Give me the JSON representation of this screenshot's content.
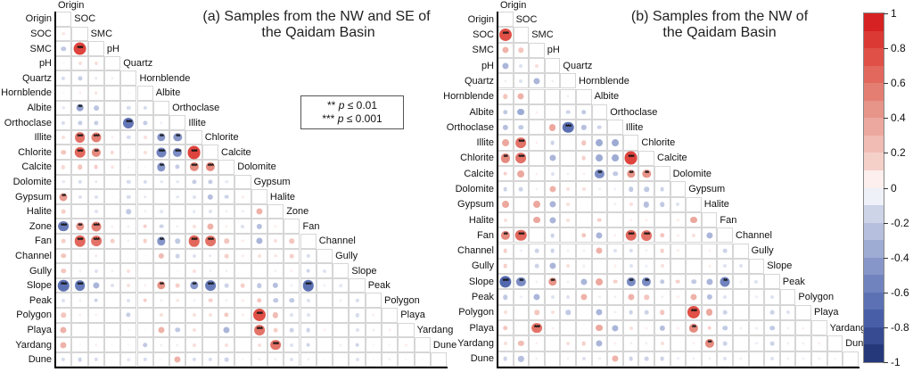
{
  "titles": {
    "a1": "(a) Samples from the NW and SE of",
    "a2": "the Qaidam Basin",
    "b1": "(b) Samples from the NW of",
    "b2": "the Qaidam Basin"
  },
  "sig_legend": {
    "line1_stars": "**",
    "line2_stars": "***",
    "p": "p",
    "line1_text": "≤ 0.01",
    "line2_text": "≤ 0.001"
  },
  "colorbar": {
    "ticks": [
      "1",
      "0.8",
      "0.6",
      "0.4",
      "0.2",
      "0",
      "-0.2",
      "-0.4",
      "-0.6",
      "-0.8",
      "-1"
    ],
    "positive_color": "#d41619",
    "negative_color": "#1b2e6e"
  },
  "chart_data": [
    {
      "type": "heatmap",
      "panel": "a",
      "title": "(a) Samples from the NW and SE of the Qaidam Basin",
      "legend_position": "right-colorbar",
      "value_range": [
        -1,
        1
      ],
      "variables": [
        "Origin",
        "SOC",
        "SMC",
        "pH",
        "Quartz",
        "Hornblende",
        "Albite",
        "Orthoclase",
        "Illite",
        "Chlorite",
        "Calcite",
        "Dolomite",
        "Gypsum",
        "Halite",
        "Zone",
        "Fan",
        "Channel",
        "Gully",
        "Slope",
        "Peak",
        "Polygon",
        "Playa",
        "Yardang",
        "Dune"
      ],
      "rows": [
        [],
        [
          0.08
        ],
        [
          -0.2,
          0.8
        ],
        [
          0.03,
          0.1,
          0.1
        ],
        [
          -0.12,
          -0.18,
          -0.08,
          -0.05
        ],
        [
          0.02,
          0.05,
          0.08,
          0.0,
          0.02
        ],
        [
          -0.08,
          -0.4,
          -0.22,
          0.0,
          -0.12,
          -0.12
        ],
        [
          -0.12,
          -0.18,
          -0.18,
          0.03,
          -0.62,
          -0.18,
          -0.05
        ],
        [
          0.1,
          0.6,
          0.55,
          0.05,
          -0.12,
          0.1,
          -0.45,
          -0.45
        ],
        [
          0.2,
          0.65,
          0.5,
          0.12,
          -0.03,
          0.1,
          -0.55,
          -0.5,
          0.8
        ],
        [
          0.12,
          0.2,
          0.15,
          0.08,
          -0.03,
          0.03,
          -0.45,
          -0.18,
          0.5,
          0.5
        ],
        [
          -0.08,
          -0.12,
          -0.08,
          0.02,
          -0.12,
          -0.12,
          -0.08,
          -0.08,
          -0.18,
          -0.18,
          -0.08
        ],
        [
          0.42,
          -0.1,
          -0.1,
          -0.03,
          -0.12,
          -0.08,
          0.0,
          -0.08,
          -0.1,
          -0.25,
          -0.15,
          0.05
        ],
        [
          0.15,
          -0.02,
          -0.1,
          0.0,
          -0.2,
          -0.05,
          -0.08,
          -0.02,
          -0.08,
          -0.1,
          -0.05,
          -0.05,
          0.3
        ],
        [
          -0.6,
          0.45,
          0.55,
          0.05,
          -0.05,
          0.15,
          -0.15,
          -0.05,
          0.1,
          0.3,
          0.05,
          -0.1,
          -0.25,
          0.05
        ],
        [
          0.15,
          0.65,
          0.6,
          0.15,
          -0.05,
          0.15,
          -0.45,
          -0.2,
          0.65,
          0.6,
          0.2,
          0.05,
          -0.3,
          0.1,
          0.2
        ],
        [
          0.2,
          0.03,
          0.08,
          0.0,
          0.0,
          0.03,
          0.25,
          -0.15,
          -0.1,
          -0.08,
          0.15,
          0.05,
          0.1,
          0.08,
          0.15,
          -0.12
        ],
        [
          0.2,
          -0.05,
          -0.1,
          -0.05,
          0.1,
          0.0,
          0.0,
          0.03,
          0.1,
          -0.05,
          -0.05,
          0.0,
          0.0,
          -0.05,
          0.05,
          -0.15,
          -0.1
        ],
        [
          -0.65,
          -0.6,
          -0.3,
          -0.1,
          0.1,
          0.05,
          0.45,
          0.15,
          -0.45,
          -0.6,
          -0.15,
          0.15,
          -0.2,
          -0.25,
          -0.05,
          -0.65,
          -0.05,
          -0.08
        ],
        [
          -0.1,
          -0.05,
          -0.15,
          0.0,
          -0.1,
          0.15,
          -0.05,
          0.08,
          -0.05,
          0.15,
          -0.05,
          0.05,
          0.2,
          -0.2,
          -0.2,
          -0.1,
          0.0,
          -0.05,
          -0.12
        ],
        [
          0.2,
          0.05,
          0.05,
          0.0,
          -0.18,
          0.0,
          0.1,
          0.0,
          0.1,
          0.1,
          0.18,
          0.05,
          0.75,
          0.25,
          -0.1,
          -0.1,
          0.0,
          0.0,
          -0.12,
          0.05
        ],
        [
          0.3,
          0.03,
          0.03,
          0.0,
          -0.03,
          0.03,
          0.3,
          -0.2,
          0.1,
          0.03,
          -0.3,
          0.0,
          0.6,
          0.15,
          -0.15,
          -0.15,
          0.05,
          0.0,
          -0.1,
          -0.05,
          0.05
        ],
        [
          0.3,
          -0.03,
          0.05,
          0.03,
          0.03,
          -0.2,
          -0.05,
          -0.05,
          0.1,
          0.0,
          0.1,
          0.0,
          0.1,
          0.6,
          -0.1,
          -0.15,
          0.0,
          -0.05,
          -0.15,
          -0.03,
          -0.03,
          0.05
        ],
        [
          -0.12,
          -0.15,
          -0.12,
          0.0,
          -0.08,
          -0.12,
          -0.03,
          0.3,
          -0.12,
          -0.12,
          -0.15,
          -0.03,
          -0.05,
          -0.05,
          -0.1,
          -0.05,
          -0.03,
          0.0,
          -0.1,
          -0.03,
          -0.05,
          -0.03,
          -0.03
        ]
      ],
      "sig": [
        [
          2,
          1,
          "***"
        ],
        [
          6,
          1,
          "**"
        ],
        [
          7,
          4,
          "***"
        ],
        [
          8,
          1,
          "***"
        ],
        [
          8,
          2,
          "***"
        ],
        [
          8,
          6,
          "**"
        ],
        [
          8,
          7,
          "**"
        ],
        [
          9,
          1,
          "***"
        ],
        [
          9,
          2,
          "**"
        ],
        [
          9,
          6,
          "***"
        ],
        [
          9,
          7,
          "***"
        ],
        [
          9,
          8,
          "***"
        ],
        [
          10,
          6,
          "**"
        ],
        [
          10,
          8,
          "***"
        ],
        [
          10,
          9,
          "***"
        ],
        [
          12,
          0,
          "**"
        ],
        [
          14,
          0,
          "***"
        ],
        [
          14,
          1,
          "**"
        ],
        [
          14,
          2,
          "***"
        ],
        [
          15,
          1,
          "***"
        ],
        [
          15,
          2,
          "***"
        ],
        [
          15,
          6,
          "**"
        ],
        [
          15,
          8,
          "***"
        ],
        [
          15,
          9,
          "***"
        ],
        [
          18,
          0,
          "***"
        ],
        [
          18,
          1,
          "***"
        ],
        [
          18,
          6,
          "**"
        ],
        [
          18,
          8,
          "**"
        ],
        [
          18,
          9,
          "***"
        ],
        [
          18,
          15,
          "***"
        ],
        [
          20,
          12,
          "***"
        ],
        [
          21,
          12,
          "***"
        ],
        [
          22,
          13,
          "***"
        ]
      ]
    },
    {
      "type": "heatmap",
      "panel": "b",
      "title": "(b) Samples from the NW of the Qaidam Basin",
      "legend_position": "right-colorbar",
      "value_range": [
        -1,
        1
      ],
      "variables": [
        "Origin",
        "SOC",
        "SMC",
        "pH",
        "Quartz",
        "Hornblende",
        "Albite",
        "Orthoclase",
        "Illite",
        "Chlorite",
        "Calcite",
        "Dolomite",
        "Gypsum",
        "Halite",
        "Fan",
        "Channel",
        "Gully",
        "Slope",
        "Peak",
        "Polygon",
        "Playa",
        "Yardang",
        "Dune"
      ],
      "rows": [
        [],
        [
          0.75
        ],
        [
          0.3,
          0.2
        ],
        [
          -0.3,
          -0.1,
          0.1
        ],
        [
          -0.05,
          -0.1,
          -0.3,
          -0.05
        ],
        [
          0.2,
          0.3,
          0.0,
          0.0,
          -0.05
        ],
        [
          -0.2,
          -0.35,
          0.05,
          0.0,
          -0.15,
          -0.2
        ],
        [
          -0.25,
          -0.2,
          0.0,
          0.35,
          -0.65,
          -0.25,
          -0.15
        ],
        [
          0.35,
          0.6,
          0.05,
          -0.15,
          0.0,
          0.2,
          -0.35,
          -0.35
        ],
        [
          0.5,
          0.6,
          0.0,
          -0.3,
          0.0,
          0.15,
          -0.35,
          -0.35,
          0.8
        ],
        [
          0.15,
          0.35,
          0.05,
          -0.1,
          -0.05,
          0.05,
          -0.5,
          -0.2,
          0.45,
          0.45
        ],
        [
          -0.15,
          -0.15,
          -0.05,
          0.3,
          0.1,
          0.1,
          -0.05,
          -0.05,
          -0.2,
          -0.2,
          -0.15
        ],
        [
          0.35,
          0.0,
          0.35,
          -0.3,
          0.1,
          0.0,
          0.0,
          -0.05,
          0.1,
          -0.25,
          -0.2,
          -0.1
        ],
        [
          0.1,
          0.0,
          0.35,
          -0.3,
          0.1,
          0.0,
          0.15,
          0.0,
          0.05,
          0.05,
          0.0,
          0.05,
          0.35
        ],
        [
          0.5,
          0.65,
          0.0,
          -0.15,
          0.0,
          0.2,
          -0.3,
          0.05,
          0.65,
          0.6,
          0.2,
          0.05,
          0.1,
          -0.3
        ],
        [
          0.15,
          -0.05,
          -0.15,
          -0.15,
          -0.05,
          -0.05,
          0.3,
          -0.1,
          -0.12,
          -0.05,
          0.15,
          0.05,
          0.0,
          0.05,
          -0.15
        ],
        [
          0.15,
          0.0,
          -0.15,
          -0.3,
          0.1,
          -0.05,
          0.0,
          0.05,
          -0.1,
          -0.05,
          0.1,
          0.0,
          0.0,
          0.05,
          -0.1,
          -0.1
        ],
        [
          -0.7,
          -0.5,
          -0.05,
          0.45,
          -0.05,
          -0.3,
          0.35,
          0.15,
          -0.5,
          -0.5,
          -0.2,
          0.15,
          -0.2,
          -0.3,
          -0.55,
          -0.05,
          -0.1
        ],
        [
          -0.2,
          -0.05,
          -0.3,
          -0.1,
          -0.1,
          0.3,
          -0.05,
          -0.05,
          0.3,
          0.2,
          -0.05,
          0.05,
          0.3,
          -0.25,
          -0.1,
          0.0,
          -0.05,
          -0.1
        ],
        [
          0.1,
          0.0,
          0.2,
          0.1,
          -0.2,
          0.0,
          -0.3,
          -0.05,
          -0.15,
          -0.15,
          0.2,
          0.0,
          0.75,
          0.35,
          -0.15,
          0.0,
          0.0,
          -0.15,
          -0.1
        ],
        [
          0.2,
          0.0,
          0.6,
          0.05,
          0.0,
          0.0,
          0.35,
          -0.3,
          0.1,
          0.05,
          -0.25,
          0.05,
          0.5,
          0.15,
          -0.2,
          -0.05,
          -0.05,
          -0.2,
          -0.05,
          0.05
        ],
        [
          0.1,
          0.25,
          0.05,
          0.0,
          0.1,
          0.15,
          -0.3,
          0.05,
          -0.05,
          -0.05,
          0.1,
          0.0,
          0.05,
          0.5,
          -0.15,
          0.0,
          -0.05,
          -0.15,
          -0.05,
          -0.05,
          0.05
        ],
        [
          -0.15,
          -0.25,
          -0.05,
          0.0,
          -0.05,
          -0.1,
          -0.05,
          0.3,
          -0.15,
          -0.15,
          -0.15,
          -0.05,
          -0.05,
          -0.05,
          -0.1,
          -0.05,
          0.0,
          -0.1,
          -0.05,
          -0.05,
          -0.05,
          -0.03
        ]
      ],
      "sig": [
        [
          1,
          0,
          "***"
        ],
        [
          7,
          4,
          "***"
        ],
        [
          8,
          1,
          "***"
        ],
        [
          9,
          0,
          "**"
        ],
        [
          9,
          1,
          "***"
        ],
        [
          9,
          8,
          "***"
        ],
        [
          10,
          6,
          "**"
        ],
        [
          10,
          8,
          "**"
        ],
        [
          10,
          9,
          "**"
        ],
        [
          14,
          0,
          "**"
        ],
        [
          14,
          1,
          "***"
        ],
        [
          14,
          8,
          "***"
        ],
        [
          14,
          9,
          "***"
        ],
        [
          17,
          0,
          "***"
        ],
        [
          17,
          1,
          "**"
        ],
        [
          17,
          3,
          "**"
        ],
        [
          17,
          8,
          "**"
        ],
        [
          17,
          9,
          "**"
        ],
        [
          17,
          14,
          "**"
        ],
        [
          19,
          12,
          "***"
        ],
        [
          20,
          2,
          "***"
        ],
        [
          20,
          12,
          "**"
        ],
        [
          21,
          13,
          "**"
        ]
      ]
    }
  ]
}
